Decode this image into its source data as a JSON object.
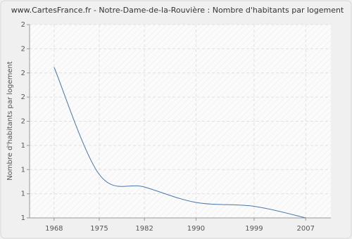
{
  "chart_data": {
    "type": "line",
    "title": "www.CartesFrance.fr - Notre-Dame-de-la-Rouvière : Nombre d'habitants par logement",
    "y_label": "Nombre d'habitants par logement",
    "x": [
      1968,
      1975,
      1982,
      1990,
      1999,
      2007
    ],
    "series": [
      {
        "name": "Nombre d'habitants par logement",
        "color": "#4a77a8",
        "values": [
          1.78,
          1.225,
          1.16,
          1.08,
          1.06,
          1.0
        ]
      }
    ],
    "xlim": [
      1964.2,
      2010.9
    ],
    "xticks": [
      1968,
      1975,
      1982,
      1990,
      1999,
      2007
    ],
    "ylim": [
      1,
      2
    ],
    "yticks": [
      1,
      {
        "value": 1.125,
        "label": "1"
      },
      {
        "value": 1.25,
        "label": "1"
      },
      {
        "value": 1.375,
        "label": "1"
      },
      {
        "value": 1.5,
        "label": "2"
      },
      {
        "value": 1.625,
        "label": "2"
      },
      {
        "value": 1.75,
        "label": "2"
      },
      {
        "value": 1.875,
        "label": "2"
      },
      2
    ],
    "grid": true
  }
}
